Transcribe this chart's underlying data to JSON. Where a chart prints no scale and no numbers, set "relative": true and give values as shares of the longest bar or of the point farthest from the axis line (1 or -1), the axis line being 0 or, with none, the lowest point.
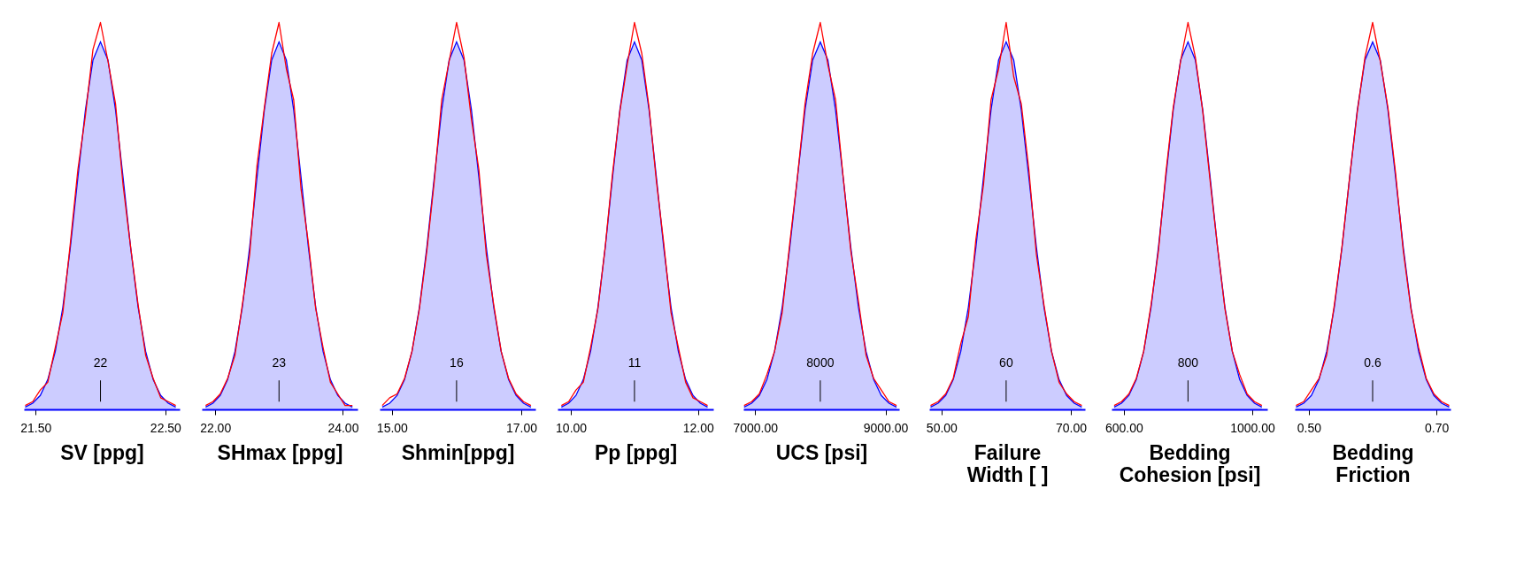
{
  "chart_data": [
    {
      "type": "area",
      "relative": true,
      "xlabel": "SV [ppg]",
      "xlim": [
        21.41,
        22.61
      ],
      "xticks": [
        {
          "value": 21.5,
          "label": "21.50"
        },
        {
          "value": 22.5,
          "label": "22.50"
        }
      ],
      "x": [
        21.42,
        21.478,
        21.536,
        21.594,
        21.652,
        21.71,
        21.768,
        21.826,
        21.884,
        21.942,
        22,
        22.058,
        22.116,
        22.174,
        22.232,
        22.29,
        22.348,
        22.406,
        22.464,
        22.522,
        22.58
      ],
      "series": [
        {
          "type": "area",
          "color": "#0000ff",
          "values": [
            0.006,
            0.016,
            0.036,
            0.077,
            0.15,
            0.264,
            0.419,
            0.6,
            0.774,
            0.903,
            0.95,
            0.903,
            0.774,
            0.6,
            0.419,
            0.264,
            0.15,
            0.077,
            0.036,
            0.016,
            0.006
          ]
        },
        {
          "type": "line",
          "color": "#ff0000",
          "values": [
            0.01,
            0.02,
            0.05,
            0.07,
            0.16,
            0.25,
            0.43,
            0.62,
            0.76,
            0.93,
            1,
            0.9,
            0.79,
            0.58,
            0.42,
            0.27,
            0.14,
            0.08,
            0.03,
            0.02,
            0.01
          ]
        }
      ],
      "annotations": [
        {
          "text": "22",
          "x": 22
        }
      ]
    },
    {
      "type": "area",
      "relative": true,
      "xlabel": "SHmax [ppg]",
      "xlim": [
        21.79,
        24.23
      ],
      "xticks": [
        {
          "value": 22,
          "label": "22.00"
        },
        {
          "value": 24,
          "label": "24.00"
        }
      ],
      "x": [
        21.85,
        21.965,
        22.08,
        22.195,
        22.31,
        22.425,
        22.54,
        22.655,
        22.77,
        22.885,
        23,
        23.115,
        23.23,
        23.345,
        23.46,
        23.575,
        23.69,
        23.805,
        23.92,
        24.035,
        24.15
      ],
      "series": [
        {
          "type": "area",
          "color": "#0000ff",
          "values": [
            0.006,
            0.016,
            0.036,
            0.077,
            0.15,
            0.264,
            0.419,
            0.6,
            0.774,
            0.903,
            0.95,
            0.903,
            0.774,
            0.6,
            0.419,
            0.264,
            0.15,
            0.077,
            0.036,
            0.016,
            0.006
          ]
        },
        {
          "type": "line",
          "color": "#ff0000",
          "values": [
            0.01,
            0.02,
            0.04,
            0.08,
            0.14,
            0.27,
            0.4,
            0.63,
            0.78,
            0.92,
            1,
            0.88,
            0.8,
            0.57,
            0.43,
            0.26,
            0.16,
            0.07,
            0.04,
            0.01,
            0.01
          ]
        }
      ],
      "annotations": [
        {
          "text": "23",
          "x": 23
        }
      ]
    },
    {
      "type": "area",
      "relative": true,
      "xlabel": "Shmin[ppg]",
      "xlim": [
        14.81,
        17.22
      ],
      "xticks": [
        {
          "value": 15,
          "label": "15.00"
        },
        {
          "value": 17,
          "label": "17.00"
        }
      ],
      "x": [
        14.85,
        14.965,
        15.08,
        15.195,
        15.31,
        15.425,
        15.54,
        15.655,
        15.77,
        15.885,
        16,
        16.115,
        16.23,
        16.345,
        16.46,
        16.575,
        16.69,
        16.805,
        16.92,
        17.035,
        17.15
      ],
      "series": [
        {
          "type": "area",
          "color": "#0000ff",
          "values": [
            0.006,
            0.016,
            0.036,
            0.077,
            0.15,
            0.264,
            0.419,
            0.6,
            0.774,
            0.903,
            0.95,
            0.903,
            0.774,
            0.6,
            0.419,
            0.264,
            0.15,
            0.077,
            0.036,
            0.016,
            0.006
          ]
        },
        {
          "type": "line",
          "color": "#ff0000",
          "values": [
            0.01,
            0.03,
            0.04,
            0.08,
            0.15,
            0.26,
            0.41,
            0.59,
            0.8,
            0.9,
            1,
            0.91,
            0.75,
            0.62,
            0.4,
            0.27,
            0.15,
            0.08,
            0.04,
            0.02,
            0.01
          ]
        }
      ],
      "annotations": [
        {
          "text": "16",
          "x": 16
        }
      ]
    },
    {
      "type": "area",
      "relative": true,
      "xlabel": "Pp  [ppg]",
      "xlim": [
        9.79,
        12.24
      ],
      "xticks": [
        {
          "value": 10,
          "label": "10.00"
        },
        {
          "value": 12,
          "label": "12.00"
        }
      ],
      "x": [
        9.85,
        9.965,
        10.08,
        10.195,
        10.31,
        10.425,
        10.54,
        10.655,
        10.77,
        10.885,
        11,
        11.115,
        11.23,
        11.345,
        11.46,
        11.575,
        11.69,
        11.805,
        11.92,
        12.035,
        12.15
      ],
      "series": [
        {
          "type": "area",
          "color": "#0000ff",
          "values": [
            0.006,
            0.016,
            0.036,
            0.077,
            0.15,
            0.264,
            0.419,
            0.6,
            0.774,
            0.903,
            0.95,
            0.903,
            0.774,
            0.6,
            0.419,
            0.264,
            0.15,
            0.077,
            0.036,
            0.016,
            0.006
          ]
        },
        {
          "type": "line",
          "color": "#ff0000",
          "values": [
            0.01,
            0.02,
            0.05,
            0.07,
            0.16,
            0.26,
            0.42,
            0.61,
            0.77,
            0.89,
            1,
            0.92,
            0.78,
            0.59,
            0.43,
            0.25,
            0.16,
            0.07,
            0.03,
            0.02,
            0.01
          ]
        }
      ],
      "annotations": [
        {
          "text": "11",
          "x": 11
        }
      ]
    },
    {
      "type": "area",
      "relative": true,
      "xlabel": "UCS [psi]",
      "xlim": [
        6820,
        9210
      ],
      "xticks": [
        {
          "value": 7000,
          "label": "7000.00"
        },
        {
          "value": 9000,
          "label": "9000.00"
        }
      ],
      "x": [
        6830,
        6947,
        7064,
        7181,
        7298,
        7415,
        7532,
        7649,
        7766,
        7883,
        8000,
        8117,
        8234,
        8351,
        8468,
        8585,
        8702,
        8819,
        8936,
        9053,
        9170
      ],
      "series": [
        {
          "type": "area",
          "color": "#0000ff",
          "values": [
            0.006,
            0.016,
            0.036,
            0.077,
            0.15,
            0.264,
            0.419,
            0.6,
            0.774,
            0.903,
            0.95,
            0.903,
            0.774,
            0.6,
            0.419,
            0.264,
            0.15,
            0.077,
            0.036,
            0.016,
            0.006
          ]
        },
        {
          "type": "line",
          "color": "#ff0000",
          "values": [
            0.01,
            0.02,
            0.04,
            0.09,
            0.15,
            0.25,
            0.43,
            0.6,
            0.79,
            0.92,
            1,
            0.89,
            0.8,
            0.6,
            0.41,
            0.28,
            0.14,
            0.08,
            0.05,
            0.02,
            0.01
          ]
        }
      ],
      "annotations": [
        {
          "text": "8000",
          "x": 8000
        }
      ]
    },
    {
      "type": "area",
      "relative": true,
      "xlabel": "Failure\nWidth [ ]",
      "xlim": [
        48.1,
        72.2
      ],
      "xticks": [
        {
          "value": 50,
          "label": "50.00"
        },
        {
          "value": 70,
          "label": "70.00"
        }
      ],
      "x": [
        48.3,
        49.47,
        50.64,
        51.81,
        52.98,
        54.15,
        55.32,
        56.49,
        57.66,
        58.83,
        60,
        61.17,
        62.34,
        63.51,
        64.68,
        65.85,
        67.02,
        68.19,
        69.36,
        70.53,
        71.7
      ],
      "series": [
        {
          "type": "area",
          "color": "#0000ff",
          "values": [
            0.006,
            0.016,
            0.036,
            0.077,
            0.15,
            0.264,
            0.419,
            0.6,
            0.774,
            0.903,
            0.95,
            0.903,
            0.774,
            0.6,
            0.419,
            0.264,
            0.15,
            0.077,
            0.036,
            0.016,
            0.006
          ]
        },
        {
          "type": "line",
          "color": "#ff0000",
          "values": [
            0.01,
            0.02,
            0.04,
            0.08,
            0.17,
            0.24,
            0.44,
            0.58,
            0.8,
            0.88,
            1,
            0.86,
            0.79,
            0.62,
            0.4,
            0.27,
            0.15,
            0.07,
            0.04,
            0.02,
            0.01
          ]
        }
      ],
      "annotations": [
        {
          "text": "60",
          "x": 60
        }
      ]
    },
    {
      "type": "area",
      "relative": true,
      "xlabel": "Bedding\nCohesion [psi]",
      "xlim": [
        562,
        1047
      ],
      "xticks": [
        {
          "value": 600,
          "label": "600.00"
        },
        {
          "value": 1000,
          "label": "1000.00"
        }
      ],
      "x": [
        570,
        593,
        616,
        639,
        662,
        685,
        708,
        731,
        754,
        777,
        800,
        823,
        846,
        869,
        892,
        915,
        938,
        961,
        984,
        1007,
        1030
      ],
      "series": [
        {
          "type": "area",
          "color": "#0000ff",
          "values": [
            0.006,
            0.016,
            0.036,
            0.077,
            0.15,
            0.264,
            0.419,
            0.6,
            0.774,
            0.903,
            0.95,
            0.903,
            0.774,
            0.6,
            0.419,
            0.264,
            0.15,
            0.077,
            0.036,
            0.016,
            0.006
          ]
        },
        {
          "type": "line",
          "color": "#ff0000",
          "values": [
            0.01,
            0.02,
            0.04,
            0.08,
            0.15,
            0.27,
            0.41,
            0.61,
            0.78,
            0.9,
            1,
            0.91,
            0.77,
            0.59,
            0.42,
            0.26,
            0.15,
            0.09,
            0.04,
            0.02,
            0.01
          ]
        }
      ],
      "annotations": [
        {
          "text": "800",
          "x": 800
        }
      ]
    },
    {
      "type": "area",
      "relative": true,
      "xlabel": "Bedding\nFriction",
      "xlim": [
        0.478,
        0.722
      ],
      "xticks": [
        {
          "value": 0.5,
          "label": "0.50"
        },
        {
          "value": 0.7,
          "label": "0.70"
        }
      ],
      "x": [
        0.48,
        0.492,
        0.504,
        0.516,
        0.528,
        0.54,
        0.552,
        0.564,
        0.576,
        0.588,
        0.6,
        0.612,
        0.624,
        0.636,
        0.648,
        0.66,
        0.672,
        0.684,
        0.696,
        0.708,
        0.72
      ],
      "series": [
        {
          "type": "area",
          "color": "#0000ff",
          "values": [
            0.006,
            0.016,
            0.036,
            0.077,
            0.15,
            0.264,
            0.419,
            0.6,
            0.774,
            0.903,
            0.95,
            0.903,
            0.774,
            0.6,
            0.419,
            0.264,
            0.15,
            0.077,
            0.036,
            0.016,
            0.006
          ]
        },
        {
          "type": "line",
          "color": "#ff0000",
          "values": [
            0.01,
            0.02,
            0.05,
            0.08,
            0.14,
            0.27,
            0.42,
            0.6,
            0.77,
            0.91,
            1,
            0.9,
            0.78,
            0.61,
            0.41,
            0.26,
            0.16,
            0.08,
            0.04,
            0.02,
            0.01
          ]
        }
      ],
      "annotations": [
        {
          "text": "0.6",
          "x": 0.6
        }
      ]
    }
  ]
}
